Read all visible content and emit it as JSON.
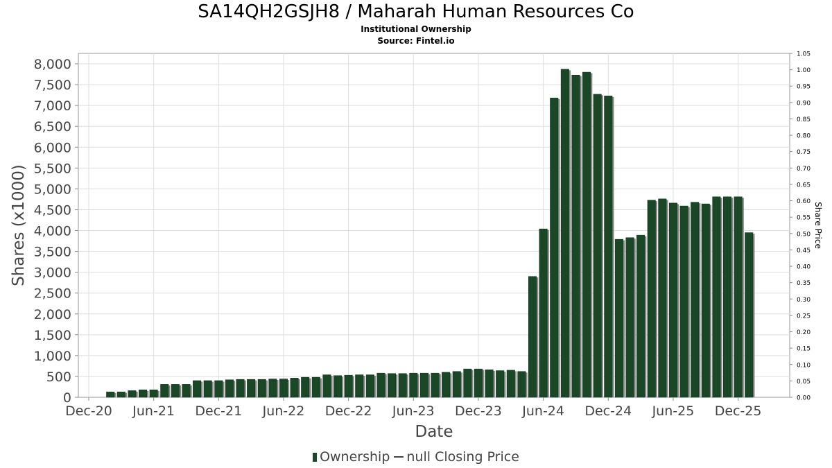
{
  "chart_data": {
    "type": "bar",
    "title": "SA14QH2GSJH8 / Maharah Human Resources Co",
    "subtitles": [
      "Institutional Ownership",
      "Source: Fintel.io"
    ],
    "xlabel": "Date",
    "ylabel": "Shares (x1000)",
    "y2label": "Share Price",
    "ylim": [
      0,
      8250
    ],
    "y2lim": [
      0,
      1.05
    ],
    "yticks": [
      "0",
      "500",
      "1,000",
      "1,500",
      "2,000",
      "2,500",
      "3,000",
      "3,500",
      "4,000",
      "4,500",
      "5,000",
      "5,500",
      "6,000",
      "6,500",
      "7,000",
      "7,500",
      "8,000"
    ],
    "y2ticks": [
      "0.00",
      "0.05",
      "0.10",
      "0.15",
      "0.20",
      "0.25",
      "0.30",
      "0.35",
      "0.40",
      "0.45",
      "0.50",
      "0.55",
      "0.60",
      "0.65",
      "0.70",
      "0.75",
      "0.80",
      "0.85",
      "0.90",
      "0.95",
      "1.00",
      "1.05"
    ],
    "xticks": [
      "Dec-20",
      "Jun-21",
      "Dec-21",
      "Jun-22",
      "Dec-22",
      "Jun-23",
      "Dec-23",
      "Jun-24",
      "Dec-24",
      "Jun-25",
      "Dec-25"
    ],
    "grid": true,
    "legend_position": "bottom",
    "series": [
      {
        "name": "Ownership",
        "color": "#1a4726",
        "values": [
          130,
          130,
          160,
          180,
          180,
          310,
          310,
          310,
          400,
          400,
          400,
          420,
          430,
          430,
          430,
          440,
          440,
          460,
          480,
          480,
          540,
          520,
          530,
          540,
          540,
          580,
          570,
          570,
          580,
          580,
          580,
          600,
          620,
          680,
          680,
          660,
          640,
          650,
          620,
          2900,
          4040,
          7180,
          7870,
          7730,
          7800,
          7270,
          7230,
          3790,
          3830,
          3890,
          4730,
          4760,
          4660,
          4590,
          4680,
          4640,
          4810,
          4810,
          4810,
          3950
        ]
      },
      {
        "name": "null Closing Price",
        "color": "#444444",
        "values": []
      }
    ]
  }
}
